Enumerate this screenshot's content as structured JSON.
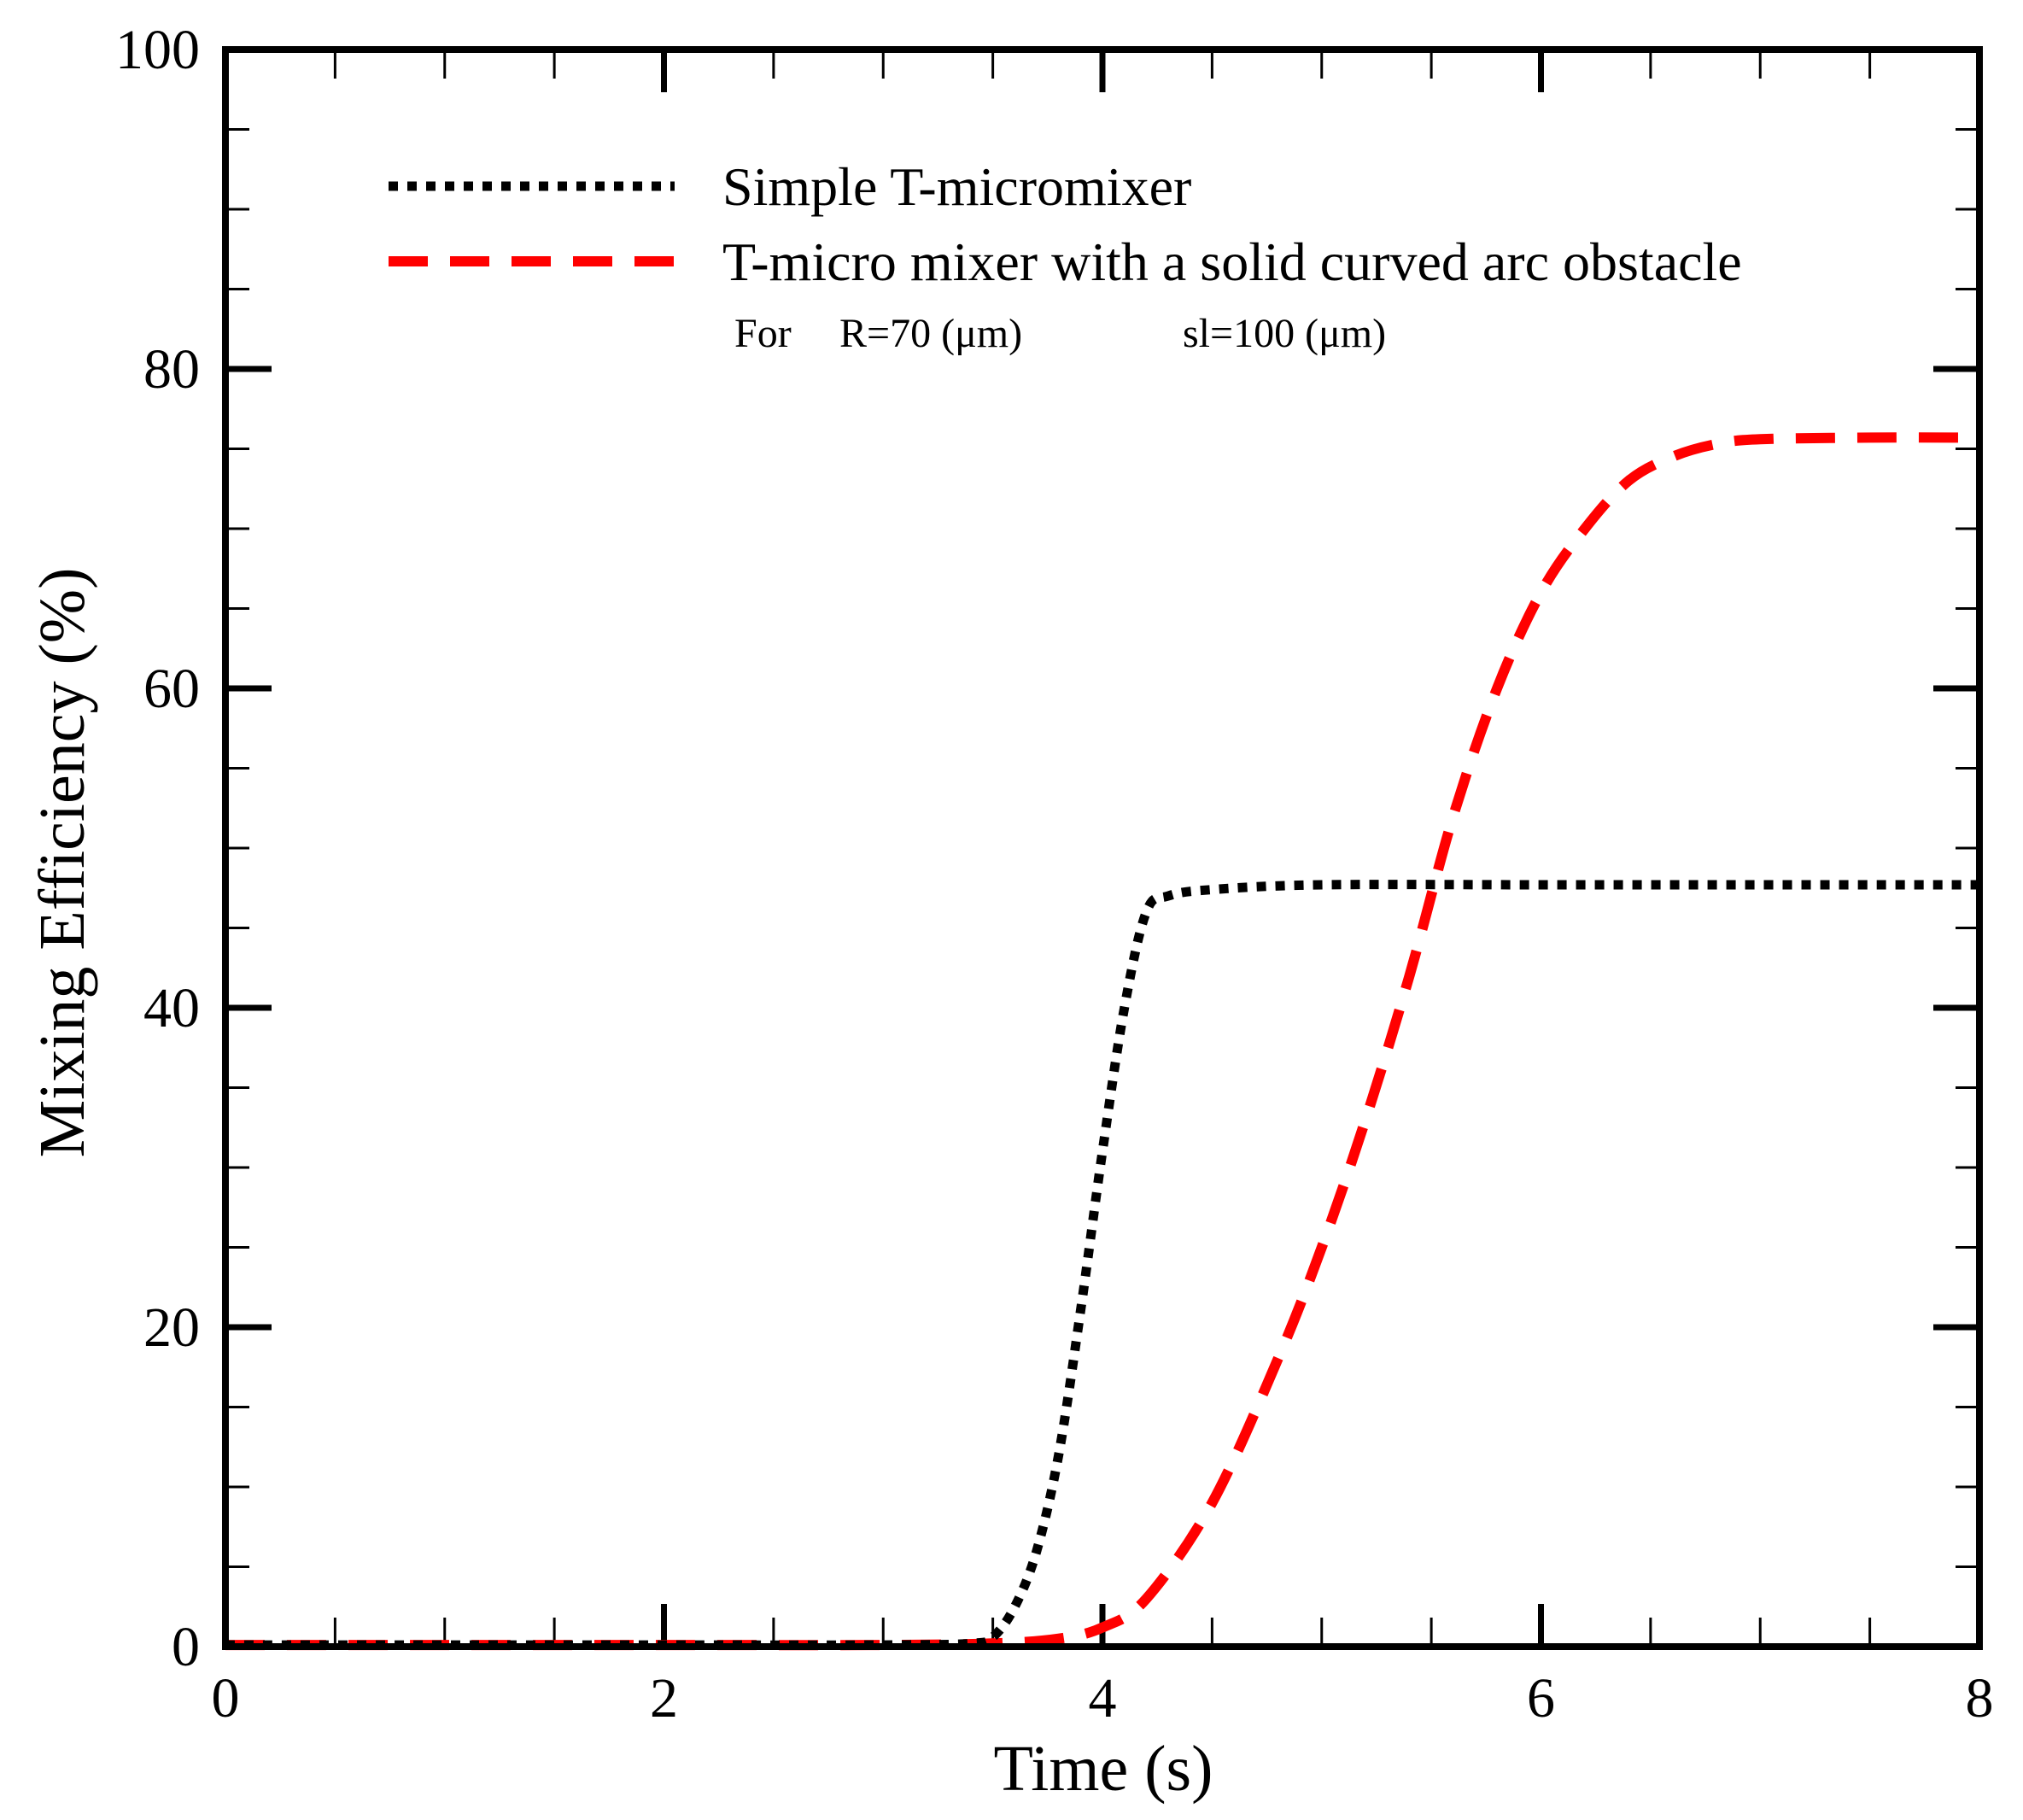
{
  "chart_data": {
    "type": "line",
    "title": "",
    "xlabel": "Time (s)",
    "ylabel": "Mixing Efficiency (%)",
    "xlim": [
      0,
      8
    ],
    "ylim": [
      0,
      100
    ],
    "x_major_ticks": [
      0,
      2,
      4,
      6,
      8
    ],
    "x_tick_labels": [
      "0",
      "2",
      "4",
      "6",
      "8"
    ],
    "y_major_ticks": [
      0,
      20,
      40,
      60,
      80,
      100
    ],
    "y_tick_labels": [
      "0",
      "20",
      "40",
      "60",
      "80",
      "100"
    ],
    "x_minor_step": 0.5,
    "y_minor_step": 5,
    "grid": false,
    "legend_position": "top",
    "note": {
      "prefix": "For",
      "r_value": "R=70 (μm)",
      "sl_value": "sl=100 (μm)"
    },
    "series": [
      {
        "name": "Simple T-micromixer",
        "color": "#000000",
        "style": "dotted",
        "x": [
          0,
          1,
          2,
          3,
          3.4,
          3.5,
          3.6,
          3.7,
          3.8,
          3.9,
          4.0,
          4.1,
          4.2,
          4.3,
          4.5,
          5,
          6,
          7,
          8
        ],
        "y": [
          0.1,
          0.1,
          0.1,
          0.1,
          0.2,
          0.6,
          2.5,
          6,
          12,
          21,
          31,
          40,
          46,
          47,
          47.4,
          47.7,
          47.7,
          47.7,
          47.7
        ]
      },
      {
        "name": "T-micro mixer with a solid curved arc obstacle",
        "color": "#ff0000",
        "style": "dashed",
        "x": [
          0,
          1,
          2,
          3,
          3.5,
          3.8,
          4.0,
          4.2,
          4.5,
          4.8,
          5.0,
          5.2,
          5.4,
          5.6,
          5.8,
          6.0,
          6.2,
          6.4,
          6.6,
          6.8,
          7.0,
          7.5,
          8.0
        ],
        "y": [
          0.1,
          0.1,
          0.1,
          0.1,
          0.2,
          0.5,
          1.2,
          3,
          9,
          18,
          25,
          33,
          42,
          52,
          60,
          66,
          70,
          73,
          74.5,
          75.3,
          75.6,
          75.7,
          75.7
        ]
      }
    ]
  }
}
